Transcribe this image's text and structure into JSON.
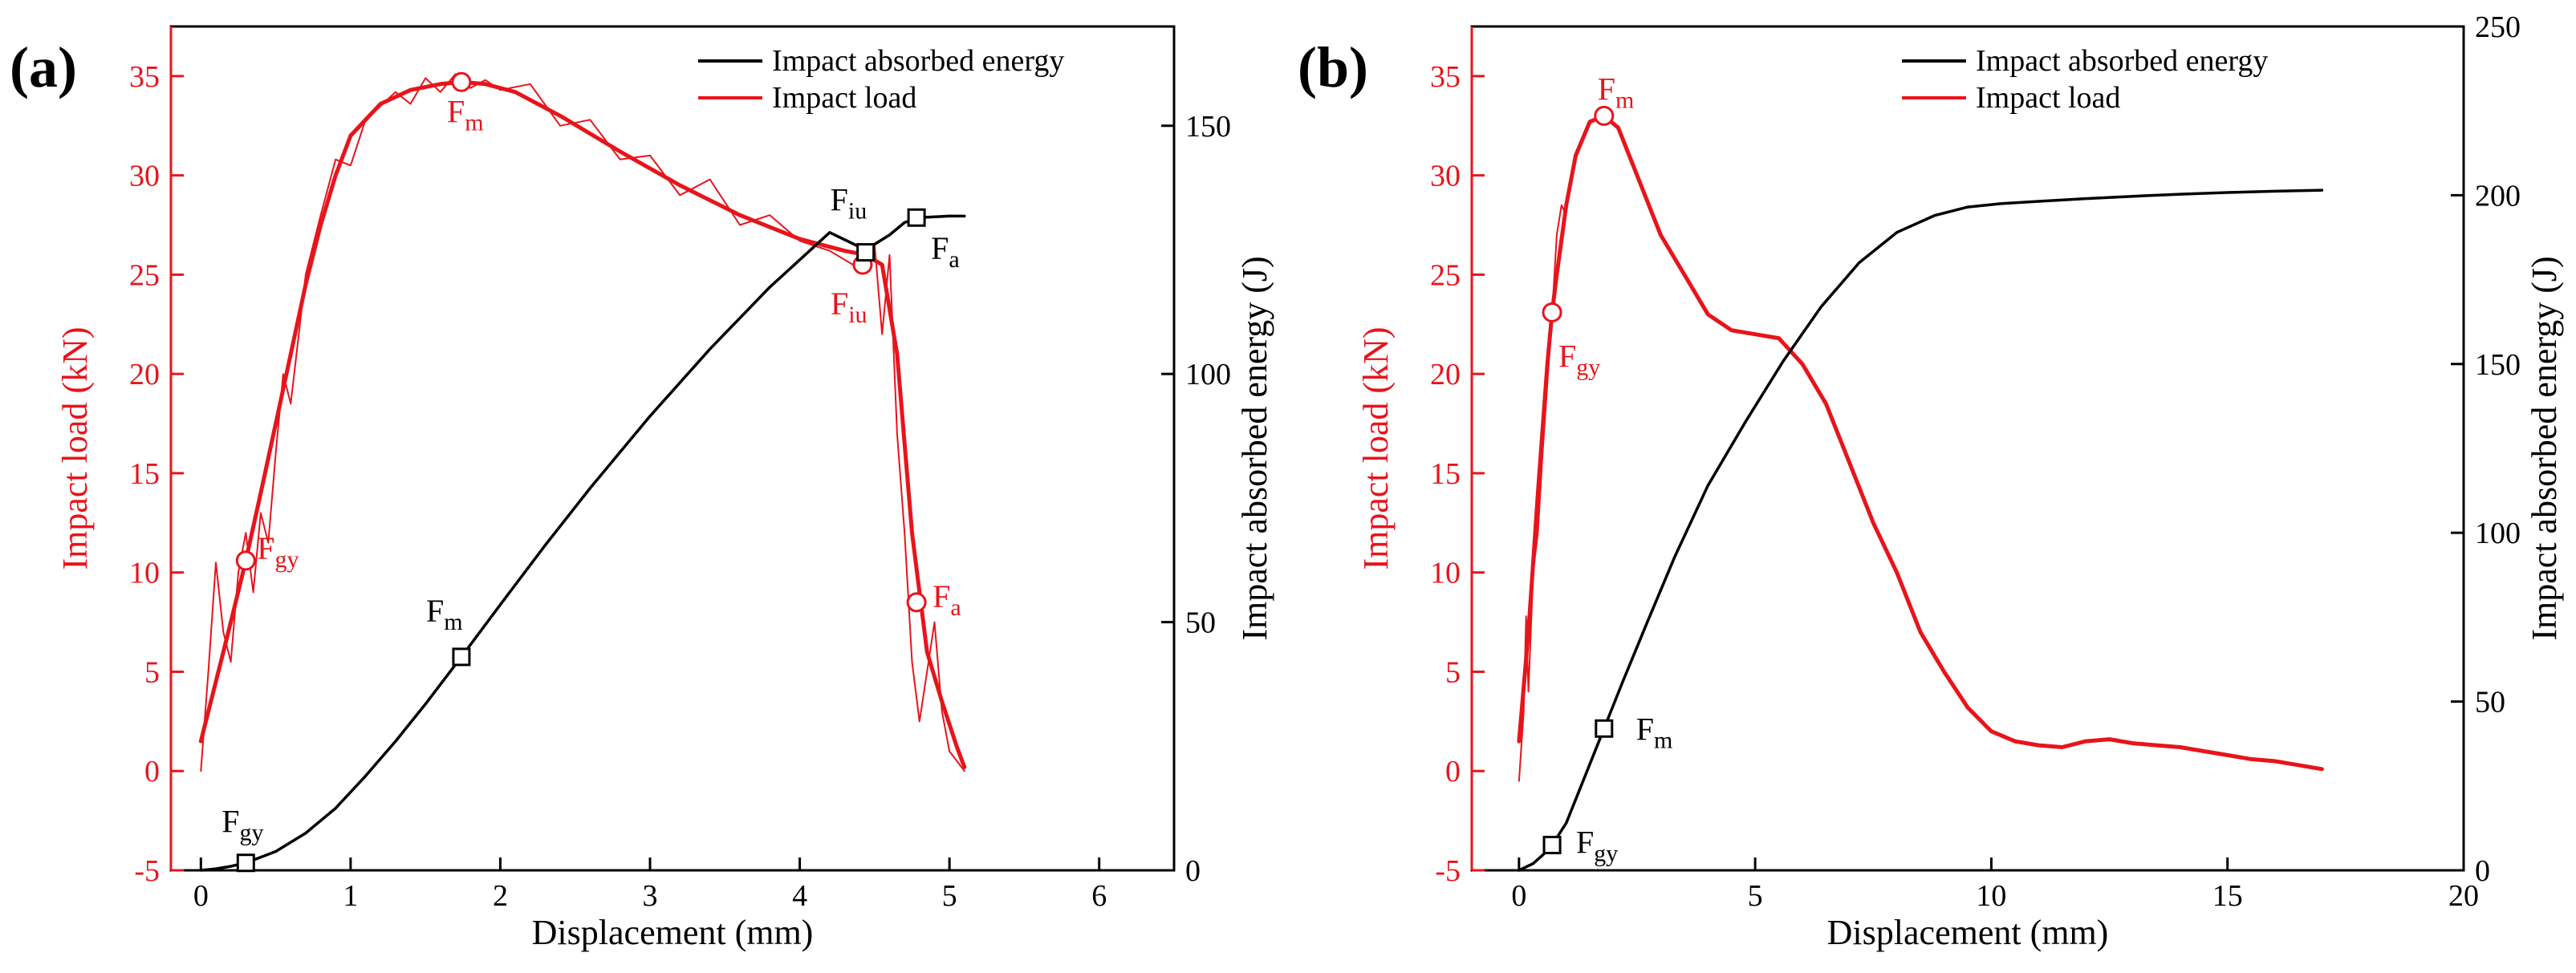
{
  "colors": {
    "load": "#e8141b",
    "energy": "#000000"
  },
  "chart_data": [
    {
      "panel": "(a)",
      "type": "line",
      "xlabel": "Displacement (mm)",
      "ylabel_left": "Impact load (kN)",
      "ylabel_right": "Impact absorbed energy (J)",
      "xlim": [
        -0.2,
        6.5
      ],
      "ylim_left": [
        -5,
        37.5
      ],
      "ylim_right": [
        0,
        170
      ],
      "x_ticks": [
        0,
        1,
        2,
        3,
        4,
        5,
        6
      ],
      "y_left_ticks": [
        -5,
        0,
        5,
        10,
        15,
        20,
        25,
        30,
        35
      ],
      "y_right_ticks": [
        0,
        50,
        100,
        150
      ],
      "legend": [
        "Impact absorbed energy",
        "Impact load"
      ],
      "series": [
        {
          "name": "Impact load",
          "axis": "left",
          "color": "load",
          "style": "bold",
          "x": [
            0,
            0.1,
            0.2,
            0.3,
            0.4,
            0.5,
            0.6,
            0.7,
            0.8,
            0.9,
            1.0,
            1.2,
            1.4,
            1.6,
            1.74,
            1.9,
            2.1,
            2.4,
            2.8,
            3.2,
            3.6,
            4.0,
            4.3,
            4.44,
            4.55,
            4.65,
            4.75,
            4.85,
            4.95,
            5.05,
            5.1
          ],
          "y": [
            1.5,
            4.5,
            7.5,
            10.6,
            14,
            17.5,
            21,
            24.5,
            27.5,
            30,
            32,
            33.6,
            34.3,
            34.6,
            34.7,
            34.6,
            34.2,
            33,
            31.2,
            29.5,
            28,
            26.8,
            26.2,
            26,
            25.5,
            21,
            12,
            6,
            3.5,
            1.2,
            0.2
          ]
        },
        {
          "name": "Impact load (raw)",
          "axis": "left",
          "color": "load",
          "style": "thin",
          "x": [
            0,
            0.05,
            0.1,
            0.15,
            0.2,
            0.25,
            0.3,
            0.35,
            0.4,
            0.45,
            0.5,
            0.55,
            0.6,
            0.7,
            0.8,
            0.9,
            1.0,
            1.1,
            1.2,
            1.3,
            1.4,
            1.5,
            1.6,
            1.7,
            1.8,
            1.9,
            2.0,
            2.2,
            2.4,
            2.6,
            2.8,
            3.0,
            3.2,
            3.4,
            3.6,
            3.8,
            4.0,
            4.2,
            4.4,
            4.5,
            4.55,
            4.6,
            4.65,
            4.7,
            4.75,
            4.8,
            4.85,
            4.9,
            4.95,
            5.0,
            5.05,
            5.1
          ],
          "y": [
            0,
            5,
            10.5,
            7,
            5.5,
            10,
            12,
            9,
            13,
            11.5,
            16,
            20,
            18.5,
            25,
            28,
            30.8,
            30.5,
            32.8,
            33.5,
            34.2,
            33.6,
            34.9,
            34.2,
            35.1,
            34.4,
            34.8,
            34.3,
            34.6,
            32.5,
            32.8,
            30.8,
            31,
            29,
            29.8,
            27.5,
            28,
            26.7,
            26.2,
            25.3,
            26.5,
            22,
            26,
            17,
            12,
            5.5,
            2.5,
            5,
            7.5,
            3,
            1,
            0.5,
            0
          ]
        },
        {
          "name": "Impact absorbed energy",
          "axis": "right",
          "color": "energy",
          "style": "normal",
          "x": [
            0,
            0.1,
            0.2,
            0.3,
            0.5,
            0.7,
            0.9,
            1.1,
            1.3,
            1.5,
            1.74,
            2.0,
            2.3,
            2.6,
            3.0,
            3.4,
            3.8,
            4.2,
            4.44,
            4.6,
            4.7,
            4.8,
            5.0,
            5.1
          ],
          "y": [
            0,
            0.3,
            0.8,
            1.5,
            3.8,
            7.5,
            12.5,
            19,
            26,
            33.5,
            43,
            53.5,
            65.5,
            77,
            91.5,
            105,
            117.5,
            128.5,
            125,
            128,
            130.5,
            131.5,
            131.8,
            131.8
          ]
        }
      ],
      "markers": [
        {
          "label": "F",
          "sub": "gy",
          "axis": "left",
          "x": 0.3,
          "y": 10.6,
          "shape": "circle",
          "color": "load",
          "dx": 14,
          "dy": -2
        },
        {
          "label": "F",
          "sub": "m",
          "axis": "left",
          "x": 1.74,
          "y": 34.7,
          "shape": "circle",
          "color": "load",
          "dx": -18,
          "dy": 50
        },
        {
          "label": "F",
          "sub": "iu",
          "axis": "left",
          "x": 4.42,
          "y": 25.5,
          "shape": "circle",
          "color": "load",
          "dx": -40,
          "dy": 62
        },
        {
          "label": "F",
          "sub": "a",
          "axis": "left",
          "x": 4.78,
          "y": 8.5,
          "shape": "circle",
          "color": "load",
          "dx": 20,
          "dy": 6
        },
        {
          "label": "F",
          "sub": "gy",
          "axis": "right",
          "x": 0.3,
          "y": 1.5,
          "shape": "square",
          "color": "energy",
          "dx": -30,
          "dy": -38
        },
        {
          "label": "F",
          "sub": "m",
          "axis": "right",
          "x": 1.74,
          "y": 43,
          "shape": "square",
          "color": "energy",
          "dx": -44,
          "dy": -44
        },
        {
          "label": "F",
          "sub": "iu",
          "axis": "right",
          "x": 4.44,
          "y": 124.5,
          "shape": "square",
          "color": "energy",
          "dx": -44,
          "dy": -52
        },
        {
          "label": "F",
          "sub": "a",
          "axis": "right",
          "x": 4.78,
          "y": 131.5,
          "shape": "square",
          "color": "energy",
          "dx": 18,
          "dy": 52
        }
      ]
    },
    {
      "panel": "(b)",
      "type": "line",
      "xlabel": "Displacement (mm)",
      "ylabel_left": "Impact load (kN)",
      "ylabel_right": "Impact absorbed energy (J)",
      "xlim": [
        -1,
        20
      ],
      "ylim_left": [
        -5,
        37.5
      ],
      "ylim_right": [
        0,
        250
      ],
      "x_ticks": [
        0,
        5,
        10,
        15,
        20
      ],
      "y_left_ticks": [
        -5,
        0,
        5,
        10,
        15,
        20,
        25,
        30,
        35
      ],
      "y_right_ticks": [
        0,
        50,
        100,
        150,
        200,
        250
      ],
      "legend": [
        "Impact absorbed energy",
        "Impact load"
      ],
      "series": [
        {
          "name": "Impact load",
          "axis": "left",
          "color": "load",
          "style": "bold",
          "x": [
            0,
            0.2,
            0.4,
            0.6,
            0.7,
            0.8,
            1.0,
            1.2,
            1.5,
            1.8,
            2.1,
            2.5,
            3.0,
            3.5,
            4.0,
            4.5,
            5.0,
            5.5,
            6.0,
            6.5,
            7.0,
            7.5,
            8.0,
            8.5,
            9.0,
            9.5,
            10.0,
            10.5,
            11.0,
            11.5,
            12.0,
            12.5,
            13.0,
            13.5,
            14.0,
            14.5,
            15.0,
            15.5,
            16.0,
            16.5,
            17.0
          ],
          "y": [
            1.5,
            7,
            14,
            20.5,
            23.1,
            25,
            28.5,
            31,
            32.7,
            33,
            32.4,
            30,
            27,
            25,
            23,
            22.2,
            22,
            21.8,
            20.5,
            18.5,
            15.5,
            12.5,
            10,
            7,
            5,
            3.2,
            2,
            1.5,
            1.3,
            1.2,
            1.5,
            1.6,
            1.4,
            1.3,
            1.2,
            1.0,
            0.8,
            0.6,
            0.5,
            0.3,
            0.1
          ]
        },
        {
          "name": "Impact load (raw)",
          "axis": "left",
          "color": "load",
          "style": "thin",
          "x": [
            0,
            0.1,
            0.15,
            0.2,
            0.3,
            0.4,
            0.5,
            0.6,
            0.7,
            0.8,
            0.9,
            1.0
          ],
          "y": [
            -0.5,
            3,
            7.8,
            4,
            10,
            12,
            16,
            19.5,
            23,
            27,
            28.5,
            28
          ]
        },
        {
          "name": "Impact absorbed energy",
          "axis": "right",
          "color": "energy",
          "style": "normal",
          "x": [
            0,
            0.3,
            0.5,
            0.7,
            1.0,
            1.4,
            1.8,
            2.2,
            2.7,
            3.3,
            4.0,
            4.8,
            5.6,
            6.4,
            7.2,
            8.0,
            8.8,
            9.5,
            10.2,
            11.0,
            12.0,
            13.0,
            14.0,
            15.0,
            16.0,
            17.0
          ],
          "y": [
            0,
            2,
            4.5,
            7.5,
            14,
            28,
            42,
            56,
            73,
            93,
            114,
            133,
            151,
            167,
            180,
            189,
            194,
            196.5,
            197.5,
            198.2,
            199,
            199.7,
            200.3,
            200.8,
            201.2,
            201.5
          ]
        }
      ],
      "markers": [
        {
          "label": "F",
          "sub": "m",
          "axis": "left",
          "x": 1.8,
          "y": 33,
          "shape": "circle",
          "color": "load",
          "dx": -8,
          "dy": -20
        },
        {
          "label": "F",
          "sub": "gy",
          "axis": "left",
          "x": 0.7,
          "y": 23.1,
          "shape": "circle",
          "color": "load",
          "dx": 8,
          "dy": 68
        },
        {
          "label": "F",
          "sub": "m",
          "axis": "right",
          "x": 1.8,
          "y": 42,
          "shape": "square",
          "color": "energy",
          "dx": 40,
          "dy": 14
        },
        {
          "label": "F",
          "sub": "gy",
          "axis": "right",
          "x": 0.7,
          "y": 7.5,
          "shape": "square",
          "color": "energy",
          "dx": 30,
          "dy": 10
        }
      ]
    }
  ]
}
